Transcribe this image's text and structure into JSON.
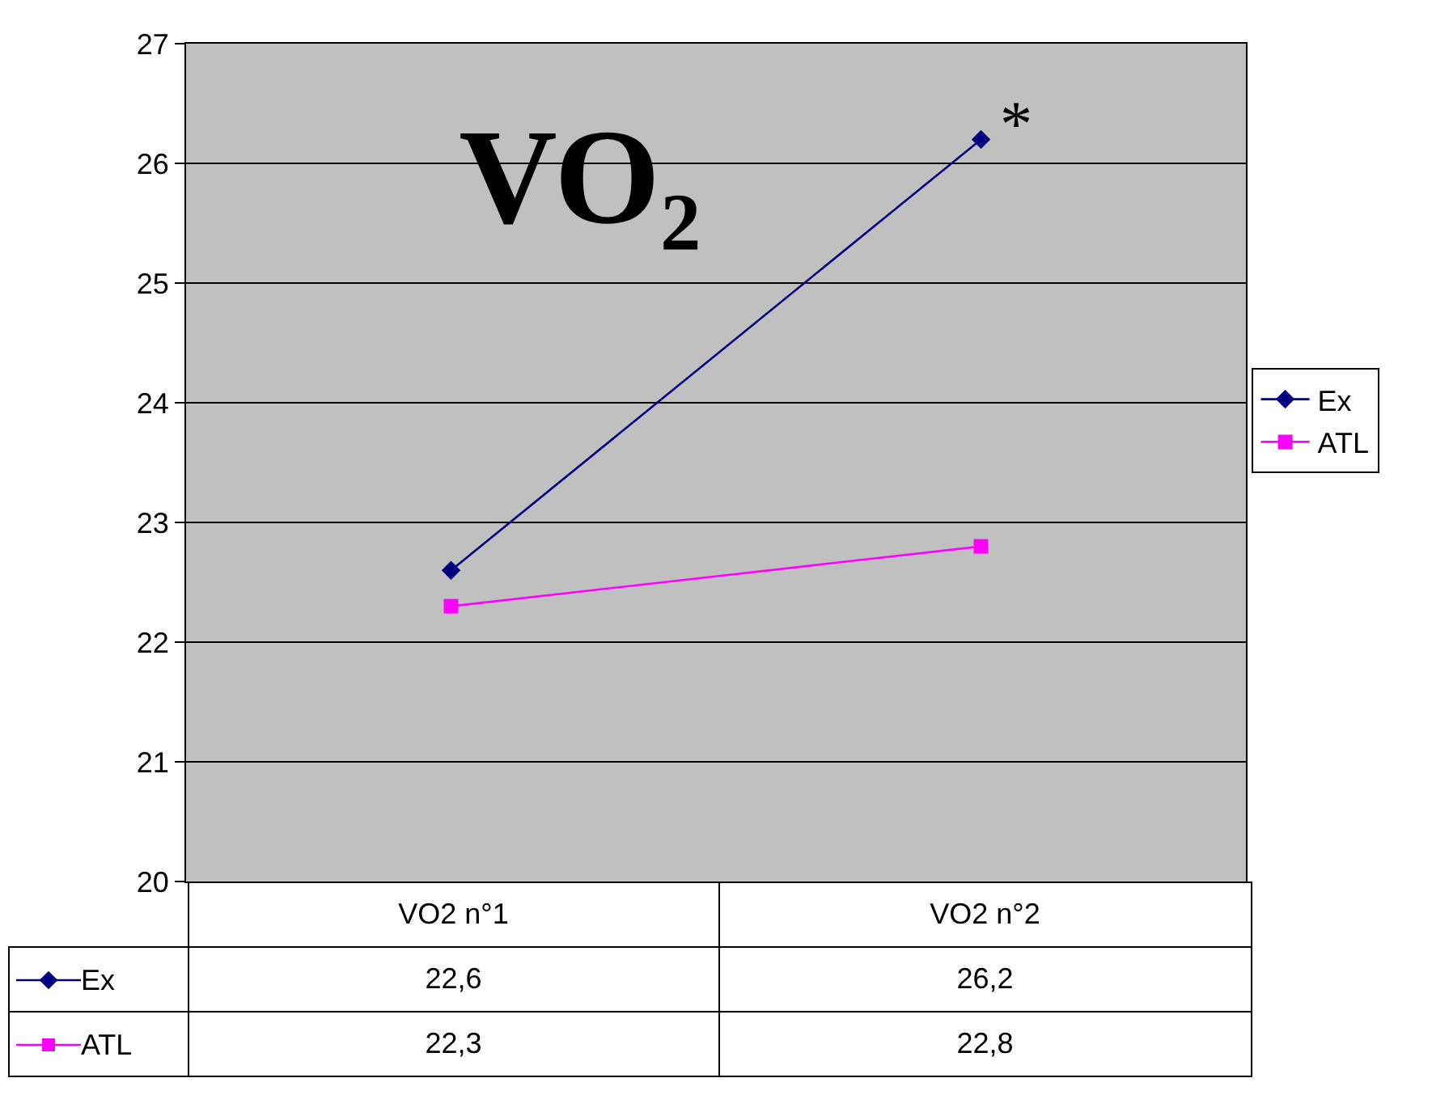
{
  "chart_data": {
    "type": "line",
    "title": "VO₂",
    "categories": [
      "VO2 n°1",
      "VO2 n°2"
    ],
    "series": [
      {
        "name": "Ex",
        "color": "#000080",
        "marker": "diamond",
        "values": [
          22.6,
          26.2
        ],
        "value_labels": [
          "22,6",
          "26,2"
        ]
      },
      {
        "name": "ATL",
        "color": "#ff00ff",
        "marker": "square",
        "values": [
          22.3,
          22.8
        ],
        "value_labels": [
          "22,3",
          "22,8"
        ]
      }
    ],
    "ylim": [
      20,
      27
    ],
    "yticks": [
      20,
      21,
      22,
      23,
      24,
      25,
      26,
      27
    ],
    "grid": "y",
    "legend": "right",
    "annotations": [
      {
        "text": "*",
        "x": "VO2 n°2",
        "y": 26.2
      }
    ]
  }
}
